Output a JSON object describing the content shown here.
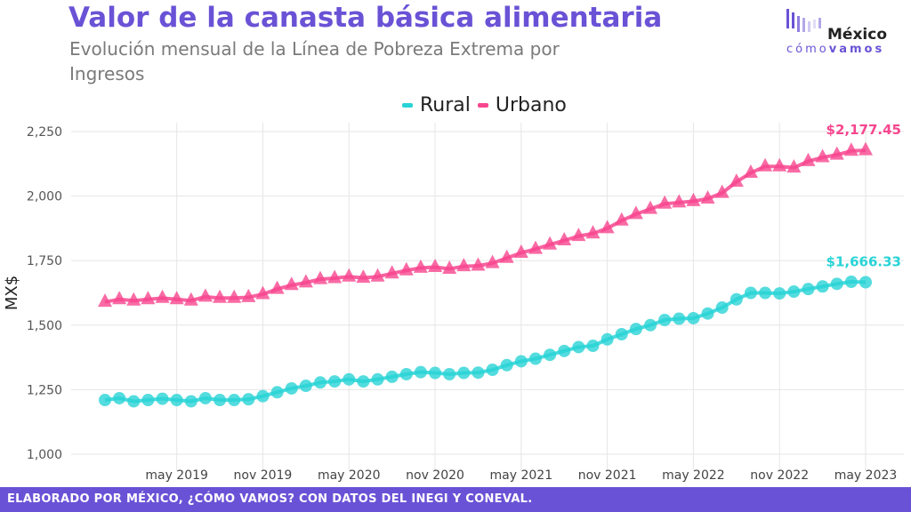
{
  "header": {
    "title": "Valor de la canasta básica alimentaria",
    "subtitle": "Evolución mensual de la Línea de Pobreza Extrema por Ingresos"
  },
  "logo": {
    "line1": "México",
    "line2a": "cómo",
    "line2b": "vamos"
  },
  "footer": {
    "text": "ELABORADO POR MÉXICO, ¿CÓMO VAMOS? CON DATOS DEL INEGI Y CONEVAL."
  },
  "colors": {
    "rural": "#29d3d6",
    "urbano": "#f7468f",
    "brand": "#6a52d6"
  },
  "chart_data": {
    "type": "line",
    "ylabel": "MX$",
    "ylim": [
      950,
      2270
    ],
    "yticks": [
      1000,
      1250,
      1500,
      1750,
      2000,
      2250
    ],
    "ytick_labels": [
      "1,000",
      "1,250",
      "1,500",
      "1,750",
      "2,000",
      "2,250"
    ],
    "xticks": [
      "2019-05",
      "2019-11",
      "2020-05",
      "2020-11",
      "2021-05",
      "2021-11",
      "2022-05",
      "2022-11",
      "2023-05"
    ],
    "xtick_labels": [
      "may 2019",
      "nov 2019",
      "may 2020",
      "nov 2020",
      "may 2021",
      "nov 2021",
      "may 2022",
      "nov 2022",
      "may 2023"
    ],
    "x": [
      "2018-12",
      "2019-01",
      "2019-02",
      "2019-03",
      "2019-04",
      "2019-05",
      "2019-06",
      "2019-07",
      "2019-08",
      "2019-09",
      "2019-10",
      "2019-11",
      "2019-12",
      "2020-01",
      "2020-02",
      "2020-03",
      "2020-04",
      "2020-05",
      "2020-06",
      "2020-07",
      "2020-08",
      "2020-09",
      "2020-10",
      "2020-11",
      "2020-12",
      "2021-01",
      "2021-02",
      "2021-03",
      "2021-04",
      "2021-05",
      "2021-06",
      "2021-07",
      "2021-08",
      "2021-09",
      "2021-10",
      "2021-11",
      "2021-12",
      "2022-01",
      "2022-02",
      "2022-03",
      "2022-04",
      "2022-05",
      "2022-06",
      "2022-07",
      "2022-08",
      "2022-09",
      "2022-10",
      "2022-11",
      "2022-12",
      "2023-01",
      "2023-02",
      "2023-03",
      "2023-04",
      "2023-05"
    ],
    "series": [
      {
        "name": "Rural",
        "marker": "circle",
        "values": [
          1210,
          1217,
          1205,
          1210,
          1215,
          1210,
          1205,
          1217,
          1210,
          1210,
          1213,
          1225,
          1240,
          1255,
          1265,
          1278,
          1282,
          1290,
          1282,
          1290,
          1300,
          1310,
          1318,
          1315,
          1310,
          1315,
          1316,
          1327,
          1345,
          1360,
          1370,
          1385,
          1400,
          1415,
          1420,
          1445,
          1465,
          1485,
          1500,
          1520,
          1525,
          1527,
          1545,
          1568,
          1600,
          1625,
          1625,
          1623,
          1630,
          1640,
          1650,
          1660,
          1668,
          1666.33
        ]
      },
      {
        "name": "Urbano",
        "marker": "triangle",
        "values": [
          1590,
          1600,
          1595,
          1600,
          1605,
          1600,
          1595,
          1610,
          1605,
          1605,
          1608,
          1620,
          1640,
          1655,
          1665,
          1678,
          1682,
          1688,
          1683,
          1688,
          1700,
          1712,
          1722,
          1725,
          1718,
          1728,
          1730,
          1740,
          1760,
          1780,
          1795,
          1812,
          1828,
          1845,
          1855,
          1875,
          1905,
          1930,
          1950,
          1970,
          1975,
          1980,
          1990,
          2012,
          2055,
          2090,
          2115,
          2115,
          2110,
          2135,
          2150,
          2160,
          2175,
          2177.45
        ]
      }
    ],
    "end_labels": {
      "Rural": "$1,666.33",
      "Urbano": "$2,177.45"
    },
    "grid": true,
    "legend_position": "top-center"
  }
}
